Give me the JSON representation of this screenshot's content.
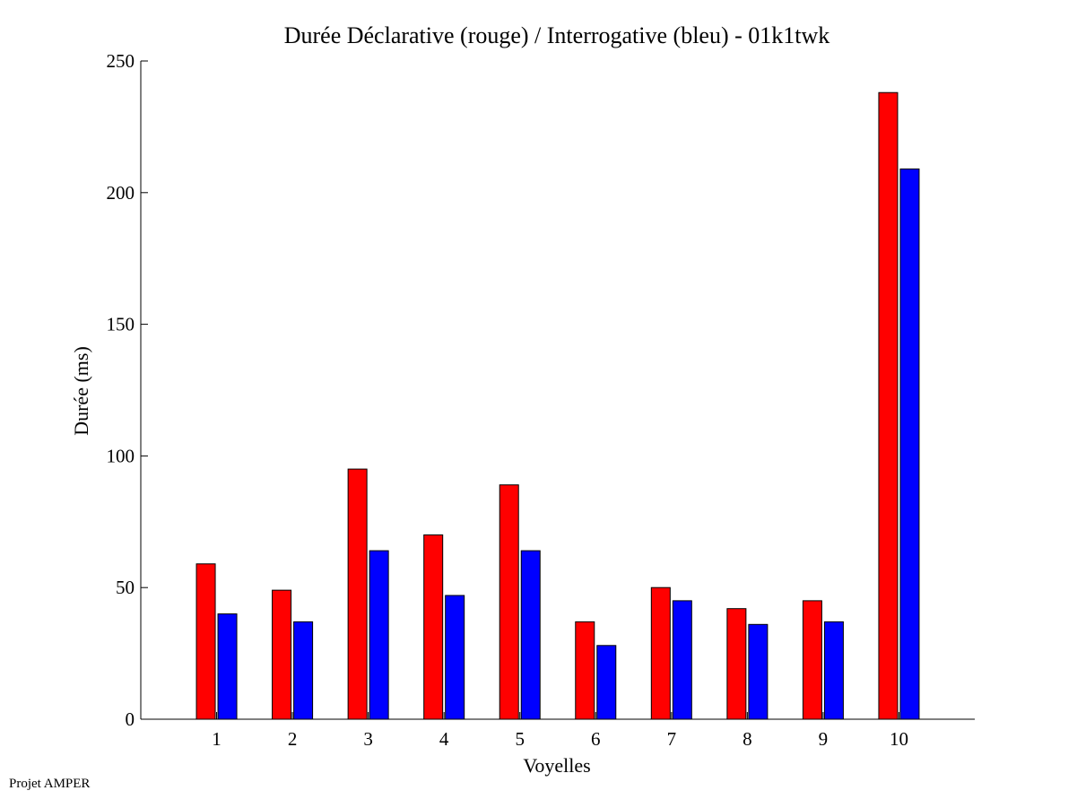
{
  "chart_data": {
    "type": "bar",
    "title": "Durée Déclarative (rouge) / Interrogative (bleu) - 01k1twk",
    "xlabel": "Voyelles",
    "ylabel": "Durée (ms)",
    "categories": [
      "1",
      "2",
      "3",
      "4",
      "5",
      "6",
      "7",
      "8",
      "9",
      "10"
    ],
    "ylim": [
      0,
      250
    ],
    "yticks": [
      "0",
      "50",
      "100",
      "150",
      "200",
      "250"
    ],
    "series": [
      {
        "color": "#ff0000",
        "values": [
          59,
          49,
          95,
          70,
          89,
          37,
          50,
          42,
          45,
          238
        ]
      },
      {
        "color": "#0000ff",
        "values": [
          40,
          37,
          64,
          47,
          64,
          28,
          45,
          36,
          37,
          209
        ]
      }
    ],
    "grid": false,
    "legend": "none"
  },
  "footer": {
    "text": "Projet AMPER"
  }
}
